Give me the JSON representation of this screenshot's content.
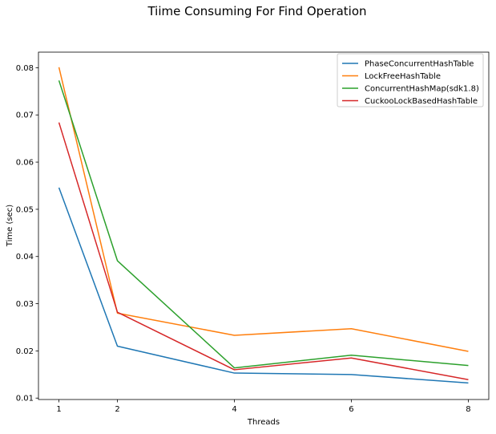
{
  "chart_data": {
    "type": "line",
    "title": "Tiime Consuming For Find Operation",
    "xlabel": "Threads",
    "ylabel": "Time (sec)",
    "x": [
      1,
      2,
      4,
      6,
      8
    ],
    "xticks": [
      "1",
      "2",
      "4",
      "6",
      "8"
    ],
    "yticks": [
      "0.01",
      "0.02",
      "0.03",
      "0.04",
      "0.05",
      "0.06",
      "0.07",
      "0.08"
    ],
    "xlim": [
      0.65,
      8.35
    ],
    "ylim": [
      0.0097,
      0.0833
    ],
    "grid": false,
    "legend_position": "top-right",
    "series": [
      {
        "name": "PhaseConcurrentHashTable",
        "color": "#1f77b4",
        "values": [
          0.0546,
          0.021,
          0.0153,
          0.015,
          0.0132
        ]
      },
      {
        "name": "LockFreeHashTable",
        "color": "#ff7f0e",
        "values": [
          0.0801,
          0.028,
          0.0233,
          0.0247,
          0.0199
        ]
      },
      {
        "name": "ConcurrentHashMap(sdk1.8)",
        "color": "#2ca02c",
        "values": [
          0.0773,
          0.0391,
          0.0164,
          0.0191,
          0.0169
        ]
      },
      {
        "name": "CuckooLockBasedHashTable",
        "color": "#d62728",
        "values": [
          0.0684,
          0.0282,
          0.016,
          0.0185,
          0.0139
        ]
      }
    ]
  }
}
